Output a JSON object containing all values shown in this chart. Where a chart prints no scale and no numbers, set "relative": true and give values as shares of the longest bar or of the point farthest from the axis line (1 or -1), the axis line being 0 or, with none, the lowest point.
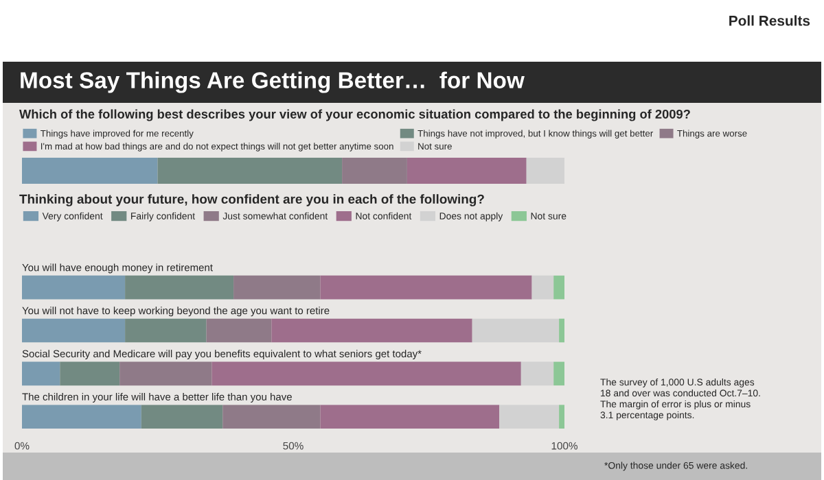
{
  "chart_data": [
    {
      "type": "bar",
      "orientation": "horizontal",
      "stacked": true,
      "relative": true,
      "title": "Most Say Things Are Getting Better…  for Now",
      "subtitle": "Which of the following best describes your view of your economic situation compared to the beginning of 2009?",
      "annotations": [
        "Poll Results"
      ],
      "legend": "top",
      "categories": [
        null
      ],
      "series": [
        {
          "name": "Things have improved for me recently",
          "color": "#7a9bb0",
          "values": [
            0.25
          ]
        },
        {
          "name": "Things have not improved, but I know things will get better",
          "color": "#728a82",
          "values": [
            0.34
          ]
        },
        {
          "name": "Things are worse",
          "color": "#8f7a88",
          "values": [
            0.12
          ]
        },
        {
          "name": "I'm mad at how bad things are and do not expect things will not get better anytime soon",
          "color": "#9e6e8c",
          "values": [
            0.22
          ]
        },
        {
          "name": "Not sure",
          "color": "#d2d2d2",
          "values": [
            0.07
          ]
        }
      ]
    },
    {
      "type": "bar",
      "orientation": "horizontal",
      "stacked": true,
      "title": "Thinking about your future, how confident are you in each of the following?",
      "legend": "top",
      "tick_labels": "x",
      "xlim": [
        0,
        100
      ],
      "xticks": [
        {
          "value": 0,
          "label": "0%"
        },
        {
          "value": 50,
          "label": "50%"
        },
        {
          "value": 100,
          "label": "100%"
        }
      ],
      "annotations": [
        "The survey of 1,000 U.S adults ages\n18 and over was conducted Oct.7–10.\nThe margin of error is plus or minus\n3.1 percentage points.",
        "*Only those under 65 were asked."
      ],
      "categories": [
        "You will have enough money in retirement",
        "You will not have to keep working beyond the age you want to retire",
        "Social Security and Medicare will pay you benefits equivalent to what seniors get today*",
        "The children in your life will have a better life than you have"
      ],
      "series": [
        {
          "name": "Very confident",
          "color": "#7a9bb0",
          "values": [
            19,
            19,
            7,
            22
          ]
        },
        {
          "name": "Fairly confident",
          "color": "#728a82",
          "values": [
            20,
            15,
            11,
            15
          ]
        },
        {
          "name": "Just somewhat confident",
          "color": "#8f7a88",
          "values": [
            16,
            12,
            17,
            18
          ]
        },
        {
          "name": "Not confident",
          "color": "#9e6e8c",
          "values": [
            39,
            37,
            57,
            33
          ]
        },
        {
          "name": "Does not apply",
          "color": "#d2d2d2",
          "values": [
            4,
            16,
            6,
            11
          ]
        },
        {
          "name": "Not sure",
          "color": "#8cc796",
          "values": [
            2,
            1,
            2,
            1
          ]
        }
      ]
    }
  ]
}
